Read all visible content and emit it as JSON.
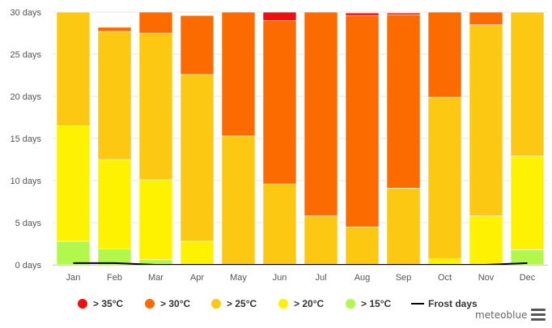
{
  "chart_data": {
    "type": "bar",
    "stacked": true,
    "categories": [
      "Jan",
      "Feb",
      "Mar",
      "Apr",
      "May",
      "Jun",
      "Jul",
      "Aug",
      "Sep",
      "Oct",
      "Nov",
      "Dec"
    ],
    "ylim": [
      0,
      30
    ],
    "y_ticks": [
      0,
      5,
      10,
      15,
      20,
      25,
      30
    ],
    "y_tick_labels": [
      "0 days",
      "5 days",
      "10 days",
      "15 days",
      "20 days",
      "25 days",
      "30 days"
    ],
    "grid": true,
    "legend_position": "bottom",
    "series": [
      {
        "name": "> 15°C",
        "color": "#b2f74b",
        "values": [
          2.8,
          1.9,
          0.6,
          0,
          0,
          0,
          0,
          0,
          0,
          0,
          0,
          1.8
        ]
      },
      {
        "name": "> 20°C",
        "color": "#fff200",
        "values": [
          13.7,
          10.6,
          9.5,
          2.8,
          0,
          0,
          0,
          0,
          0,
          0.7,
          5.8,
          11.1
        ]
      },
      {
        "name": "> 25°C",
        "color": "#fcc811",
        "values": [
          13.5,
          15.2,
          17.4,
          19.8,
          15.3,
          9.6,
          5.8,
          4.5,
          9.1,
          19.2,
          22.7,
          17.1
        ]
      },
      {
        "name": "> 30°C",
        "color": "#fb6b00",
        "values": [
          0,
          0.5,
          2.5,
          7.0,
          14.7,
          19.4,
          24.2,
          25.1,
          20.6,
          10.1,
          1.5,
          0
        ]
      },
      {
        "name": "> 35°C",
        "color": "#ed1010",
        "values": [
          0,
          0,
          0,
          0,
          0,
          1.0,
          0,
          0.3,
          0.2,
          0,
          0,
          0
        ]
      }
    ],
    "frost_days": {
      "name": "Frost days",
      "color": "#000000",
      "values": [
        0.2,
        0.2,
        0,
        0,
        0,
        0,
        0,
        0,
        0,
        0,
        0,
        0.2
      ]
    },
    "legend_order": [
      "> 35°C",
      "> 30°C",
      "> 25°C",
      "> 20°C",
      "> 15°C",
      "Frost days"
    ]
  },
  "branding": {
    "text": "meteoblue",
    "menu_icon": "hamburger-menu-icon"
  }
}
